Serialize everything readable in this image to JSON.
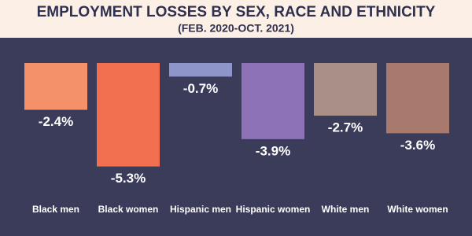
{
  "chart_data": {
    "type": "bar",
    "title": "EMPLOYMENT LOSSES BY SEX, RACE AND ETHNICITY",
    "subtitle": "(FEB. 2020-OCT. 2021)",
    "categories": [
      "Black men",
      "Black women",
      "Hispanic men",
      "Hispanic women",
      "White men",
      "White women"
    ],
    "values": [
      -2.4,
      -5.3,
      -0.7,
      -3.9,
      -2.7,
      -3.6
    ],
    "value_labels": [
      "-2.4%",
      "-5.3%",
      "-0.7%",
      "-3.9%",
      "-2.7%",
      "-3.6%"
    ],
    "colors": [
      "#f4906a",
      "#f26f50",
      "#8e95c8",
      "#8e72b8",
      "#a89088",
      "#a87a6e"
    ],
    "ylim": [
      -6,
      0
    ]
  }
}
